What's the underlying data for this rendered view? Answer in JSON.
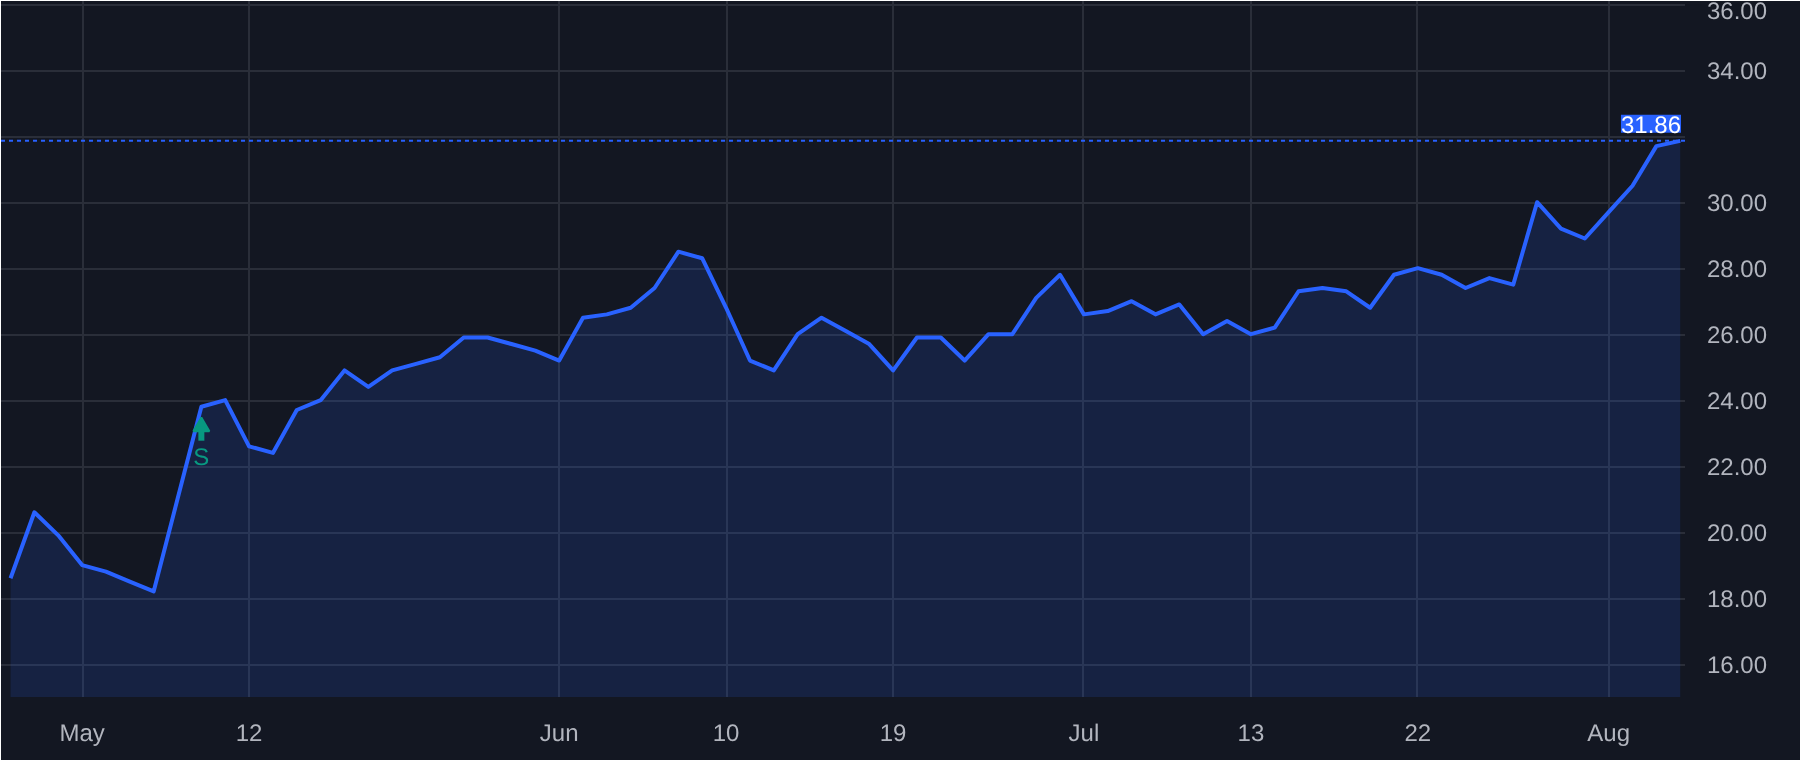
{
  "chart_data": {
    "type": "area",
    "categories": [
      null,
      null,
      null,
      "May",
      null,
      null,
      null,
      null,
      null,
      null,
      "12",
      null,
      null,
      null,
      null,
      null,
      null,
      null,
      null,
      null,
      null,
      null,
      null,
      "Jun",
      null,
      null,
      null,
      null,
      null,
      null,
      "10",
      null,
      null,
      null,
      null,
      null,
      null,
      "19",
      null,
      null,
      null,
      null,
      null,
      null,
      null,
      "Jul",
      null,
      null,
      null,
      null,
      null,
      null,
      "13",
      null,
      null,
      null,
      null,
      null,
      null,
      "22",
      null,
      null,
      null,
      null,
      null,
      null,
      null,
      "Aug",
      null,
      null,
      null
    ],
    "series": [
      {
        "color": "#2962ff",
        "values": [
          18.6,
          20.6,
          19.9,
          19.0,
          18.8,
          18.5,
          18.2,
          21.0,
          23.8,
          24.0,
          22.6,
          22.4,
          23.7,
          24.0,
          24.9,
          24.4,
          24.9,
          25.1,
          25.3,
          25.9,
          25.9,
          25.7,
          25.5,
          25.2,
          26.5,
          26.6,
          26.8,
          27.4,
          28.5,
          28.3,
          26.8,
          25.2,
          24.9,
          26.0,
          26.5,
          26.1,
          25.7,
          24.9,
          25.9,
          25.9,
          25.2,
          26.0,
          26.0,
          27.1,
          27.8,
          26.6,
          26.7,
          27.0,
          26.6,
          26.9,
          26.0,
          26.4,
          26.0,
          26.2,
          27.3,
          27.4,
          27.3,
          26.8,
          27.8,
          28.0,
          27.8,
          27.4,
          27.7,
          27.5,
          30.0,
          29.2,
          28.9,
          29.7,
          30.5,
          31.7,
          31.86
        ]
      }
    ],
    "ylim": [
      15.0,
      36.1
    ],
    "yticks": [
      {
        "value": 16,
        "label": "16.00"
      },
      {
        "value": 18,
        "label": "18.00"
      },
      {
        "value": 20,
        "label": "20.00"
      },
      {
        "value": 22,
        "label": "22.00"
      },
      {
        "value": 24,
        "label": "24.00"
      },
      {
        "value": 26,
        "label": "26.00"
      },
      {
        "value": 28,
        "label": "28.00"
      },
      {
        "value": 30,
        "label": "30.00"
      },
      {
        "value": 32,
        "label": null
      },
      {
        "value": 34,
        "label": "34.00"
      },
      {
        "value": 36,
        "label": "36.00"
      }
    ],
    "ref_lines": [
      {
        "axis": "y",
        "value": 31.86,
        "label": "31.86",
        "color": "#2962ff",
        "line_style": "dotted"
      }
    ],
    "annotations": [
      {
        "text": "S",
        "y": 23.8
      }
    ],
    "grid": true
  }
}
